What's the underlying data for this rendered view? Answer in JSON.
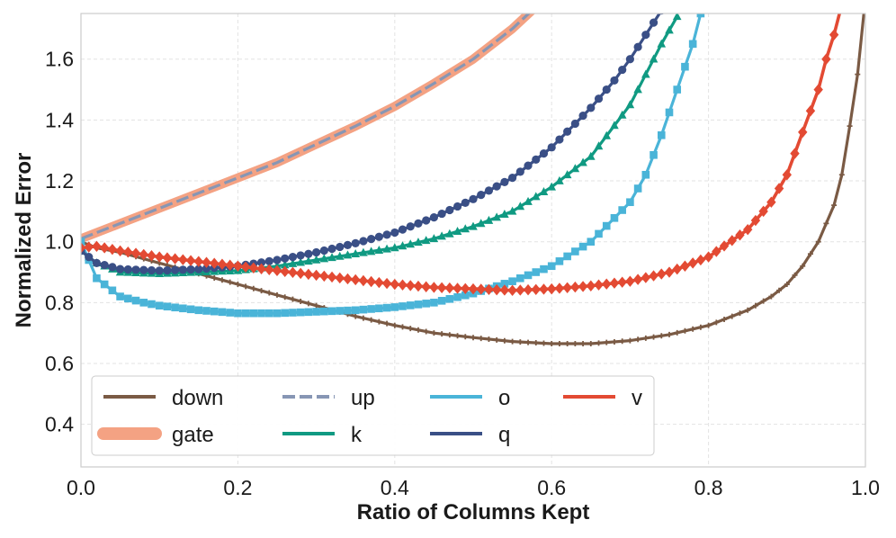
{
  "chart_data": {
    "type": "line",
    "title": "",
    "xlabel": "Ratio of Columns Kept",
    "ylabel": "Normalized Error",
    "xlim": [
      0.0,
      1.0
    ],
    "ylim": [
      0.26,
      1.75
    ],
    "xticks": [
      0.0,
      0.2,
      0.4,
      0.6,
      0.8,
      1.0
    ],
    "xtick_labels": [
      "0.0",
      "0.2",
      "0.4",
      "0.6",
      "0.8",
      "1.0"
    ],
    "yticks": [
      0.4,
      0.6,
      0.8,
      1.0,
      1.2,
      1.4,
      1.6
    ],
    "ytick_labels": [
      "0.4",
      "0.6",
      "0.8",
      "1.0",
      "1.2",
      "1.4",
      "1.6"
    ],
    "grid": true,
    "legend_position": "lower-left",
    "series": [
      {
        "name": "down",
        "color": "#7a5a44",
        "marker": "plus",
        "x": [
          0.0,
          0.02,
          0.05,
          0.1,
          0.15,
          0.2,
          0.25,
          0.3,
          0.35,
          0.4,
          0.45,
          0.5,
          0.55,
          0.6,
          0.65,
          0.7,
          0.75,
          0.8,
          0.85,
          0.88,
          0.9,
          0.92,
          0.94,
          0.96,
          0.97,
          0.98,
          0.99,
          1.0
        ],
        "y": [
          1.0,
          0.98,
          0.965,
          0.93,
          0.895,
          0.86,
          0.825,
          0.79,
          0.755,
          0.725,
          0.7,
          0.685,
          0.672,
          0.665,
          0.665,
          0.675,
          0.695,
          0.725,
          0.775,
          0.82,
          0.86,
          0.92,
          1.0,
          1.12,
          1.22,
          1.38,
          1.55,
          1.8
        ]
      },
      {
        "name": "gate",
        "color": "#f4a283",
        "marker": "none",
        "x": [
          0.0,
          0.05,
          0.1,
          0.15,
          0.2,
          0.25,
          0.3,
          0.35,
          0.4,
          0.45,
          0.5,
          0.55,
          0.575
        ],
        "y": [
          1.01,
          1.06,
          1.11,
          1.16,
          1.21,
          1.26,
          1.32,
          1.38,
          1.445,
          1.52,
          1.6,
          1.7,
          1.76
        ]
      },
      {
        "name": "up",
        "color": "#8796b4",
        "marker": "none",
        "x": [
          0.0,
          0.05,
          0.1,
          0.15,
          0.2,
          0.25,
          0.3,
          0.35,
          0.4,
          0.45,
          0.5,
          0.55,
          0.575
        ],
        "y": [
          1.01,
          1.06,
          1.11,
          1.16,
          1.21,
          1.26,
          1.32,
          1.38,
          1.445,
          1.52,
          1.6,
          1.7,
          1.76
        ]
      },
      {
        "name": "k",
        "color": "#109a82",
        "marker": "triangle",
        "x": [
          0.0,
          0.02,
          0.05,
          0.1,
          0.15,
          0.2,
          0.25,
          0.3,
          0.35,
          0.4,
          0.45,
          0.5,
          0.55,
          0.6,
          0.65,
          0.7,
          0.72,
          0.74,
          0.76
        ],
        "y": [
          0.97,
          0.93,
          0.9,
          0.895,
          0.9,
          0.905,
          0.92,
          0.94,
          0.96,
          0.98,
          1.01,
          1.05,
          1.1,
          1.18,
          1.28,
          1.45,
          1.55,
          1.65,
          1.74
        ]
      },
      {
        "name": "o",
        "color": "#4ab4d8",
        "marker": "square",
        "x": [
          0.0,
          0.02,
          0.05,
          0.08,
          0.1,
          0.15,
          0.2,
          0.25,
          0.3,
          0.35,
          0.4,
          0.45,
          0.5,
          0.55,
          0.6,
          0.65,
          0.7,
          0.72,
          0.74,
          0.76,
          0.78,
          0.79
        ],
        "y": [
          1.0,
          0.88,
          0.82,
          0.8,
          0.79,
          0.775,
          0.765,
          0.765,
          0.77,
          0.775,
          0.785,
          0.8,
          0.83,
          0.87,
          0.92,
          1.0,
          1.13,
          1.22,
          1.35,
          1.5,
          1.65,
          1.75
        ]
      },
      {
        "name": "q",
        "color": "#3a4f86",
        "marker": "circle",
        "x": [
          0.0,
          0.02,
          0.05,
          0.1,
          0.15,
          0.2,
          0.25,
          0.3,
          0.35,
          0.4,
          0.45,
          0.5,
          0.55,
          0.6,
          0.65,
          0.68,
          0.7,
          0.72,
          0.74
        ],
        "y": [
          0.97,
          0.93,
          0.91,
          0.905,
          0.91,
          0.92,
          0.94,
          0.965,
          0.995,
          1.03,
          1.08,
          1.14,
          1.21,
          1.31,
          1.44,
          1.53,
          1.6,
          1.68,
          1.76
        ]
      },
      {
        "name": "v",
        "color": "#e34a33",
        "marker": "diamond",
        "x": [
          0.0,
          0.02,
          0.05,
          0.1,
          0.15,
          0.2,
          0.25,
          0.3,
          0.35,
          0.4,
          0.45,
          0.5,
          0.55,
          0.6,
          0.65,
          0.7,
          0.75,
          0.8,
          0.85,
          0.88,
          0.9,
          0.92,
          0.94,
          0.95,
          0.96,
          0.97
        ],
        "y": [
          0.98,
          0.985,
          0.97,
          0.95,
          0.935,
          0.92,
          0.905,
          0.89,
          0.875,
          0.86,
          0.85,
          0.845,
          0.84,
          0.845,
          0.855,
          0.87,
          0.9,
          0.95,
          1.04,
          1.13,
          1.22,
          1.36,
          1.5,
          1.6,
          1.68,
          1.78
        ]
      }
    ]
  },
  "legend": {
    "items": [
      {
        "label": "down",
        "series": "down"
      },
      {
        "label": "up",
        "series": "up"
      },
      {
        "label": "o",
        "series": "o"
      },
      {
        "label": "v",
        "series": "v"
      },
      {
        "label": "gate",
        "series": "gate"
      },
      {
        "label": "k",
        "series": "k"
      },
      {
        "label": "q",
        "series": "q"
      }
    ]
  }
}
